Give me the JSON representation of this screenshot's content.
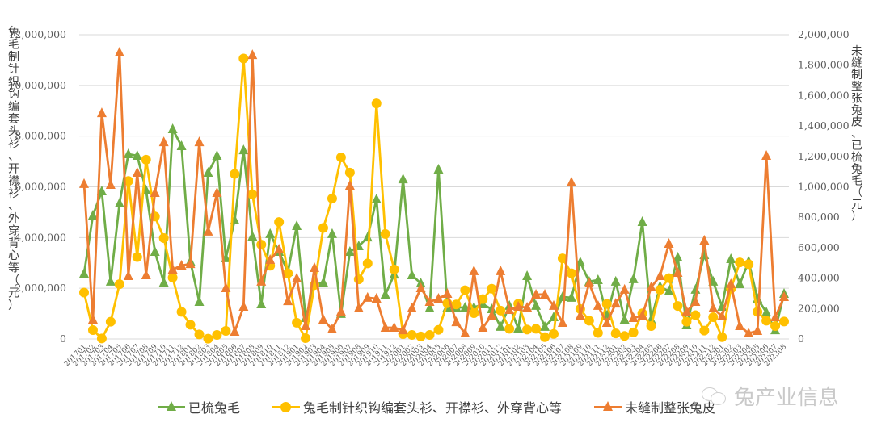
{
  "chart_data": {
    "type": "line",
    "title": "",
    "left_axis": {
      "label": "兔毛制针织钩编套头衫、开襟衫、外穿背心等（元）",
      "ticks": [
        "0",
        "2,000,000",
        "4,000,000",
        "6,000,000",
        "8,000,000",
        "10,000,000",
        "12,000,000"
      ],
      "ylim": [
        0,
        12000000
      ]
    },
    "right_axis": {
      "label": "未缝制整张兔皮、已梳兔毛（元）",
      "ticks": [
        "0",
        "200,000",
        "400,000",
        "600,000",
        "800,000",
        "1,000,000",
        "1,200,000",
        "1,400,000",
        "1,600,000",
        "1,800,000",
        "2,000,000"
      ],
      "ylim": [
        0,
        2000000
      ]
    },
    "xlabel": "",
    "grid": true,
    "legend_position": "bottom",
    "x": [
      "201701",
      "201702",
      "201703",
      "201704",
      "201705",
      "201706",
      "201707",
      "201708",
      "201709",
      "201710",
      "201711",
      "201712",
      "201801",
      "201802",
      "201803",
      "201804",
      "201805",
      "201806",
      "201807",
      "201808",
      "201809",
      "201810",
      "201811",
      "201812",
      "201901",
      "201902",
      "201903",
      "201904",
      "201905",
      "201906",
      "201907",
      "201908",
      "201909",
      "201910",
      "201911",
      "201912",
      "202001",
      "202002",
      "202003",
      "202004",
      "202005",
      "202006",
      "202007",
      "202008",
      "202009",
      "202010",
      "202011",
      "202012",
      "202101",
      "202102",
      "202103",
      "202104",
      "202105",
      "202106",
      "202107",
      "202108",
      "202109",
      "202110",
      "202111",
      "202112",
      "202201",
      "202202",
      "202203",
      "202204",
      "202205",
      "202206",
      "202207",
      "202208",
      "202209",
      "202210",
      "202211",
      "202212",
      "202301",
      "202302",
      "202303",
      "202304",
      "202305",
      "202306",
      "202307",
      "202308"
    ],
    "series": [
      {
        "name": "已梳兔毛",
        "axis": "right",
        "color": "#70AD47",
        "marker": "triangle",
        "values": [
          430000,
          812000,
          971000,
          377000,
          891000,
          1215000,
          1204000,
          976000,
          573000,
          371000,
          1379000,
          1268000,
          509000,
          244000,
          1093000,
          1204000,
          531000,
          780000,
          1241000,
          674000,
          228000,
          690000,
          573000,
          440000,
          743000,
          138000,
          355000,
          371000,
          690000,
          165000,
          573000,
          610000,
          668000,
          918000,
          291000,
          424000,
          1050000,
          419000,
          366000,
          202000,
          1114000,
          207000,
          207000,
          207000,
          207000,
          228000,
          196000,
          80000,
          218000,
          69000,
          414000,
          218000,
          80000,
          143000,
          276000,
          271000,
          504000,
          377000,
          387000,
          149000,
          377000,
          127000,
          393000,
          769000,
          127000,
          345000,
          313000,
          536000,
          90000,
          324000,
          552000,
          377000,
          212000,
          525000,
          361000,
          509000,
          265000,
          175000,
          58000,
          297000
        ]
      },
      {
        "name": "兔毛制针织钩编套头衫、开襟衫、外穿背心等",
        "axis": "left",
        "color": "#FFC000",
        "marker": "circle",
        "values": [
          1830000,
          350000,
          20000,
          680000,
          2160000,
          6230000,
          3230000,
          7070000,
          4830000,
          3980000,
          2420000,
          1070000,
          560000,
          180000,
          10000,
          160000,
          320000,
          6510000,
          11060000,
          5700000,
          3720000,
          2890000,
          4610000,
          2590000,
          640000,
          30000,
          2130000,
          4380000,
          5540000,
          7160000,
          6560000,
          2350000,
          2980000,
          9290000,
          4140000,
          2740000,
          190000,
          160000,
          100000,
          160000,
          360000,
          1410000,
          1360000,
          1920000,
          1020000,
          1570000,
          1980000,
          1120000,
          400000,
          1390000,
          370000,
          400000,
          70000,
          200000,
          3180000,
          2590000,
          1180000,
          720000,
          240000,
          1380000,
          220000,
          120000,
          260000,
          1010000,
          510000,
          1940000,
          2400000,
          1300000,
          680000,
          940000,
          330000,
          860000,
          70000,
          1980000,
          3020000,
          2950000,
          1070000,
          720000,
          510000,
          690000
        ]
      },
      {
        "name": "未缝制整张兔皮",
        "axis": "right",
        "color": "#ED7D31",
        "marker": "triangle",
        "values": [
          1019000,
          127000,
          1485000,
          1013000,
          1883000,
          414000,
          1093000,
          419000,
          960000,
          1294000,
          456000,
          483000,
          493000,
          1294000,
          706000,
          960000,
          334000,
          48000,
          212000,
          1867000,
          377000,
          520000,
          589000,
          249000,
          398000,
          85000,
          467000,
          127000,
          64000,
          180000,
          1008000,
          202000,
          271000,
          265000,
          74000,
          74000,
          58000,
          202000,
          334000,
          244000,
          265000,
          297000,
          111000,
          37000,
          446000,
          74000,
          154000,
          446000,
          191000,
          212000,
          207000,
          292000,
          292000,
          218000,
          106000,
          1029000,
          154000,
          366000,
          218000,
          106000,
          233000,
          324000,
          138000,
          154000,
          340000,
          414000,
          626000,
          435000,
          180000,
          244000,
          647000,
          202000,
          149000,
          361000,
          85000,
          37000,
          53000,
          1204000,
          143000,
          276000
        ]
      }
    ]
  },
  "legend": {
    "items": [
      {
        "label": "已梳兔毛",
        "color": "#70AD47",
        "marker": "triangle"
      },
      {
        "label": "兔毛制针织钩编套头衫、开襟衫、外穿背心等",
        "color": "#FFC000",
        "marker": "circle"
      },
      {
        "label": "未缝制整张兔皮",
        "color": "#ED7D31",
        "marker": "triangle"
      }
    ]
  },
  "watermark": {
    "text": "兔产业信息",
    "icon": "wechat-icon"
  },
  "colors": {
    "grid": "#D9D9D9",
    "tick_text": "#595959",
    "background": "#FFFFFF"
  }
}
